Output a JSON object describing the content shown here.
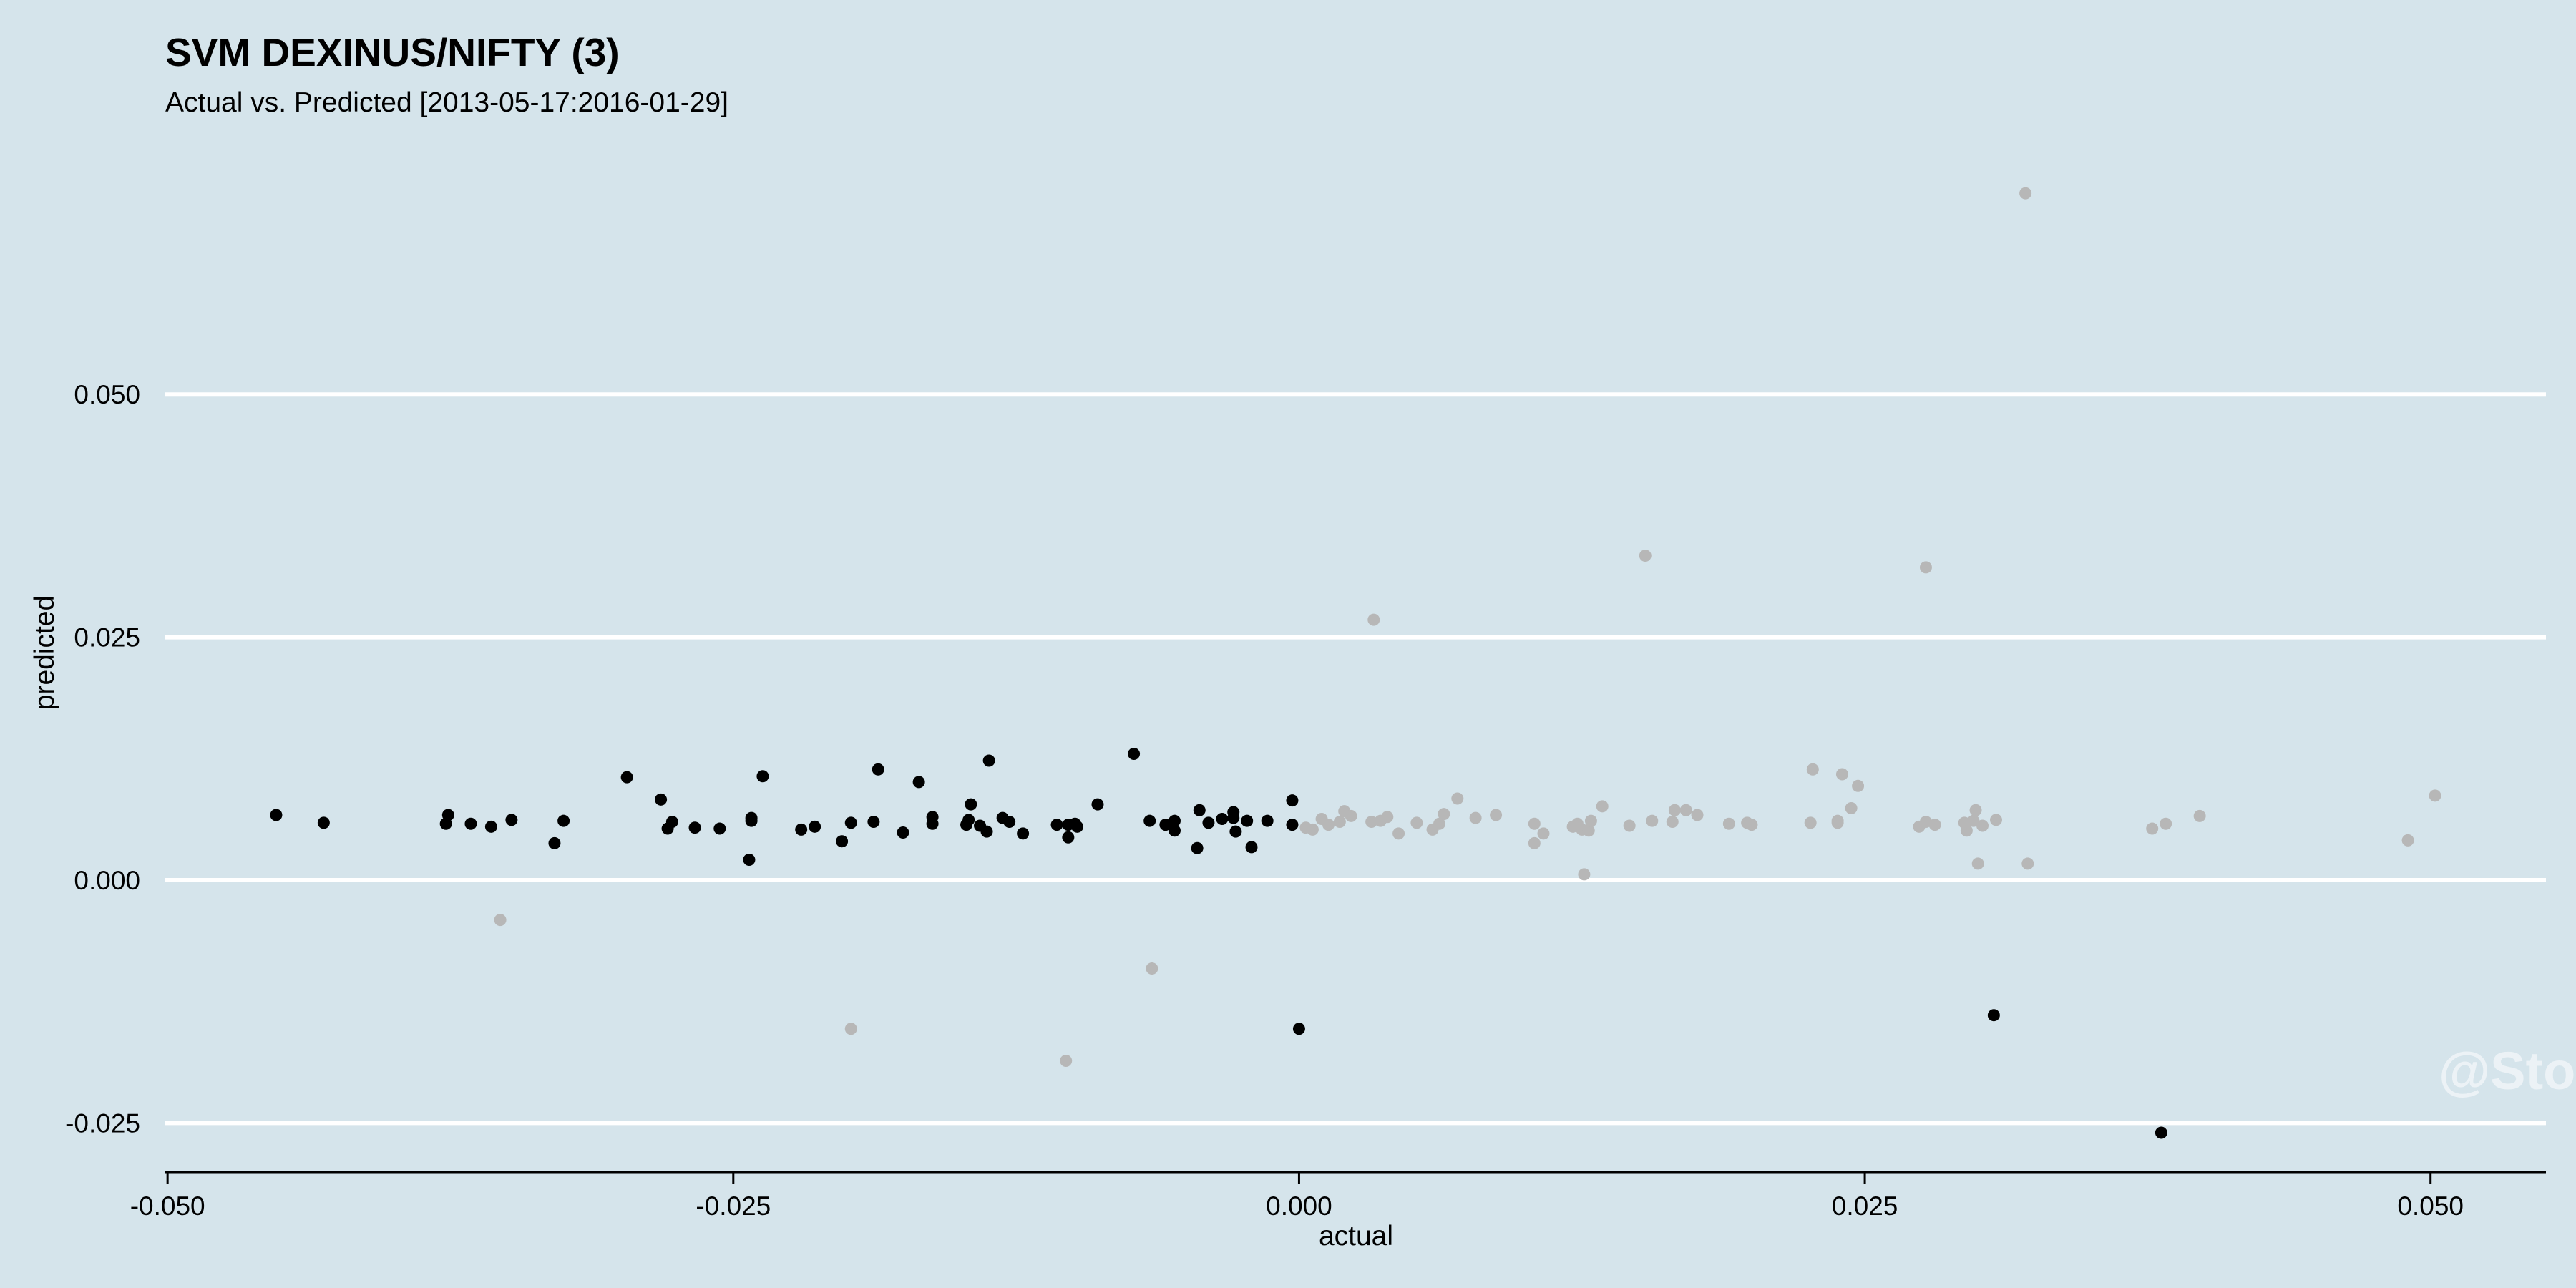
{
  "chart_data": {
    "type": "scatter",
    "title": "SVM DEXINUS/NIFTY (3)",
    "subtitle": "Actual vs. Predicted [2013-05-17:2016-01-29]",
    "xlabel": "actual",
    "ylabel": "predicted",
    "xlim": [
      -0.0501,
      0.0551
    ],
    "ylim": [
      -0.0302,
      0.0755
    ],
    "x_ticks": [
      -0.05,
      -0.025,
      0.0,
      0.025,
      0.05
    ],
    "x_tick_labels": [
      "-0.050",
      "-0.025",
      "0.000",
      "0.025",
      "0.050"
    ],
    "y_ticks": [
      -0.025,
      0.0,
      0.025,
      0.05
    ],
    "y_tick_labels": [
      "-0.025",
      "0.000",
      "0.025",
      "0.050"
    ],
    "grid": "horizontal",
    "legend": "none",
    "watermark": "@Sto",
    "colors": {
      "background": "#d5e4eb",
      "grid": "#ffffff",
      "series_a": "#000000",
      "series_b": "#b7b7b7"
    },
    "series": [
      {
        "color": "#000000",
        "points": [
          [
            -0.0452,
            0.0067
          ],
          [
            -0.0431,
            0.0059
          ],
          [
            -0.0377,
            0.0058
          ],
          [
            -0.0376,
            0.0067
          ],
          [
            -0.0366,
            0.0058
          ],
          [
            -0.0357,
            0.0055
          ],
          [
            -0.0348,
            0.0062
          ],
          [
            -0.0329,
            0.0038
          ],
          [
            -0.0325,
            0.0061
          ],
          [
            -0.0297,
            0.0106
          ],
          [
            -0.0282,
            0.0083
          ],
          [
            -0.0279,
            0.0053
          ],
          [
            -0.0277,
            0.006
          ],
          [
            -0.0267,
            0.0054
          ],
          [
            -0.0256,
            0.0053
          ],
          [
            -0.0243,
            0.0021
          ],
          [
            -0.0242,
            0.0061
          ],
          [
            -0.0242,
            0.0064
          ],
          [
            -0.0237,
            0.0107
          ],
          [
            -0.022,
            0.0052
          ],
          [
            -0.0214,
            0.0055
          ],
          [
            -0.0202,
            0.004
          ],
          [
            -0.0198,
            0.0059
          ],
          [
            -0.0188,
            0.006
          ],
          [
            -0.0186,
            0.0114
          ],
          [
            -0.0175,
            0.0049
          ],
          [
            -0.0168,
            0.0101
          ],
          [
            -0.0162,
            0.0058
          ],
          [
            -0.0162,
            0.0065
          ],
          [
            -0.0147,
            0.0057
          ],
          [
            -0.0146,
            0.0062
          ],
          [
            -0.0145,
            0.0078
          ],
          [
            -0.0141,
            0.0056
          ],
          [
            -0.0138,
            0.005
          ],
          [
            -0.0137,
            0.0123
          ],
          [
            -0.0131,
            0.0064
          ],
          [
            -0.0128,
            0.006
          ],
          [
            -0.0122,
            0.0048
          ],
          [
            -0.0107,
            0.0057
          ],
          [
            -0.0102,
            0.0057
          ],
          [
            -0.0102,
            0.0044
          ],
          [
            -0.0099,
            0.0058
          ],
          [
            -0.0098,
            0.0055
          ],
          [
            -0.0089,
            0.0078
          ],
          [
            -0.0073,
            0.013
          ],
          [
            -0.0066,
            0.0061
          ],
          [
            -0.0059,
            0.0057
          ],
          [
            -0.0055,
            0.0061
          ],
          [
            -0.0055,
            0.0051
          ],
          [
            -0.0045,
            0.0033
          ],
          [
            -0.0044,
            0.0072
          ],
          [
            -0.004,
            0.0059
          ],
          [
            -0.0034,
            0.0063
          ],
          [
            -0.0029,
            0.0064
          ],
          [
            -0.0029,
            0.007
          ],
          [
            -0.0028,
            0.005
          ],
          [
            -0.0023,
            0.0061
          ],
          [
            -0.0021,
            0.0034
          ],
          [
            -0.0014,
            0.0061
          ],
          [
            -0.0003,
            0.0057
          ],
          [
            -0.0003,
            0.0082
          ],
          [
            0.0,
            -0.0153
          ],
          [
            0.0307,
            -0.0139
          ],
          [
            0.0381,
            -0.026
          ]
        ]
      },
      {
        "color": "#b7b7b7",
        "points": [
          [
            -0.0353,
            -0.0041
          ],
          [
            -0.0198,
            -0.0153
          ],
          [
            -0.0103,
            -0.0186
          ],
          [
            -0.0065,
            -0.0091
          ],
          [
            0.0003,
            0.0054
          ],
          [
            0.0006,
            0.0052
          ],
          [
            0.001,
            0.0063
          ],
          [
            0.0013,
            0.0057
          ],
          [
            0.0018,
            0.006
          ],
          [
            0.002,
            0.0071
          ],
          [
            0.0023,
            0.0066
          ],
          [
            0.0032,
            0.006
          ],
          [
            0.0033,
            0.0268
          ],
          [
            0.0036,
            0.0061
          ],
          [
            0.0039,
            0.0065
          ],
          [
            0.0044,
            0.0048
          ],
          [
            0.0052,
            0.0059
          ],
          [
            0.0059,
            0.0052
          ],
          [
            0.0062,
            0.0058
          ],
          [
            0.0064,
            0.0068
          ],
          [
            0.007,
            0.0084
          ],
          [
            0.0078,
            0.0064
          ],
          [
            0.0087,
            0.0067
          ],
          [
            0.0104,
            0.0058
          ],
          [
            0.0104,
            0.0038
          ],
          [
            0.0108,
            0.0048
          ],
          [
            0.0121,
            0.0055
          ],
          [
            0.0123,
            0.0058
          ],
          [
            0.0125,
            0.0052
          ],
          [
            0.0126,
            0.0006
          ],
          [
            0.0128,
            0.0051
          ],
          [
            0.0129,
            0.0061
          ],
          [
            0.0134,
            0.0076
          ],
          [
            0.0146,
            0.0056
          ],
          [
            0.0153,
            0.0334
          ],
          [
            0.0156,
            0.0061
          ],
          [
            0.0165,
            0.006
          ],
          [
            0.0166,
            0.0072
          ],
          [
            0.0171,
            0.0072
          ],
          [
            0.0176,
            0.0067
          ],
          [
            0.019,
            0.0058
          ],
          [
            0.0198,
            0.0059
          ],
          [
            0.02,
            0.0057
          ],
          [
            0.0226,
            0.0059
          ],
          [
            0.0227,
            0.0114
          ],
          [
            0.0238,
            0.0059
          ],
          [
            0.0238,
            0.0061
          ],
          [
            0.024,
            0.0109
          ],
          [
            0.0244,
            0.0074
          ],
          [
            0.0247,
            0.0097
          ],
          [
            0.0274,
            0.0055
          ],
          [
            0.0277,
            0.0322
          ],
          [
            0.0277,
            0.006
          ],
          [
            0.0281,
            0.0057
          ],
          [
            0.0294,
            0.0059
          ],
          [
            0.0295,
            0.0051
          ],
          [
            0.0298,
            0.0061
          ],
          [
            0.0299,
            0.0072
          ],
          [
            0.03,
            0.0017
          ],
          [
            0.0302,
            0.0056
          ],
          [
            0.0308,
            0.0062
          ],
          [
            0.0321,
            0.0707
          ],
          [
            0.0322,
            0.0017
          ],
          [
            0.0377,
            0.0053
          ],
          [
            0.0383,
            0.0058
          ],
          [
            0.0398,
            0.0066
          ],
          [
            0.049,
            0.0041
          ],
          [
            0.0502,
            0.0087
          ]
        ]
      }
    ]
  }
}
